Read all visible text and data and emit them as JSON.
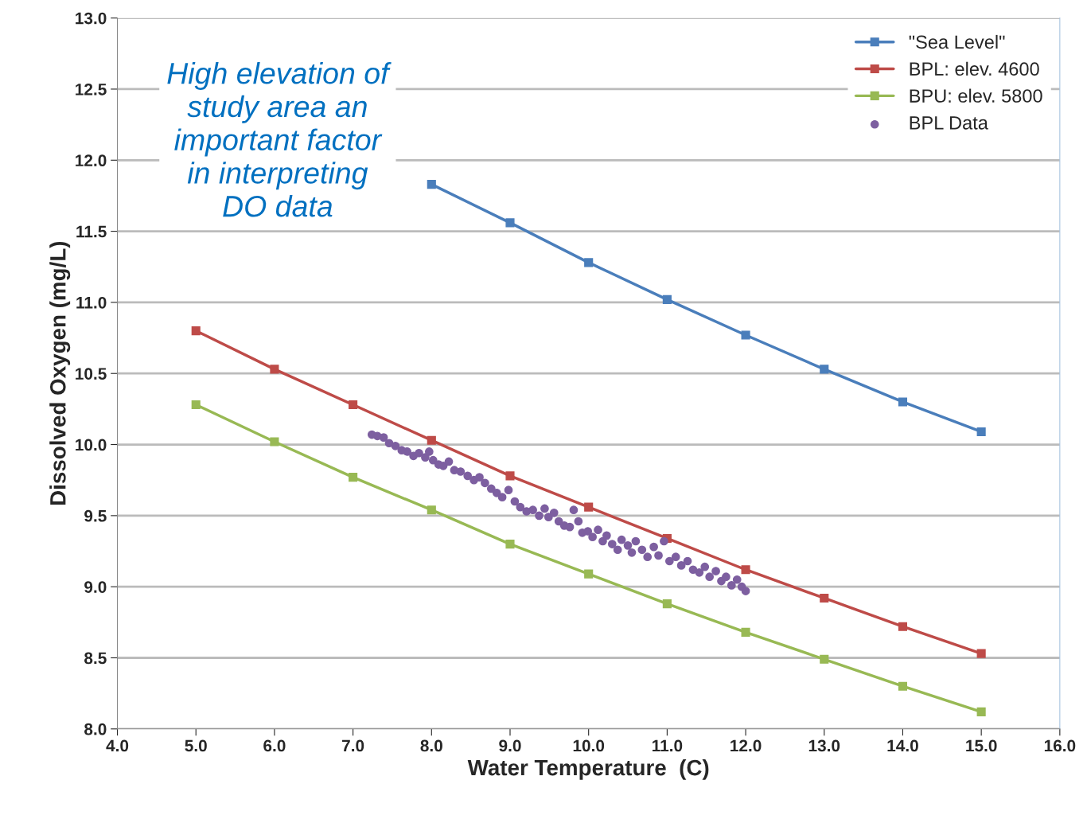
{
  "chart_data": {
    "type": "line",
    "xlabel": "Water Temperature  (C)",
    "ylabel": "Dissolved Oxygen (mg/L)",
    "annotations": [
      "High elevation of\nstudy area an\nimportant factor\nin interpreting\nDO data"
    ],
    "x": [
      5,
      6,
      7,
      8,
      9,
      10,
      11,
      12,
      13,
      14,
      15
    ],
    "series": [
      {
        "name": "\"Sea Level\"",
        "color": "#4a7ebb",
        "marker": "square",
        "values": [
          null,
          null,
          null,
          11.83,
          11.56,
          11.28,
          11.02,
          10.77,
          10.53,
          10.3,
          10.09
        ]
      },
      {
        "name": "BPL: elev. 4600",
        "color": "#be4b48",
        "marker": "square",
        "values": [
          10.8,
          10.53,
          10.28,
          10.03,
          9.78,
          9.56,
          9.34,
          9.12,
          8.92,
          8.72,
          8.53
        ]
      },
      {
        "name": "BPU: elev. 5800",
        "color": "#98b954",
        "marker": "square",
        "values": [
          10.28,
          10.02,
          9.77,
          9.54,
          9.3,
          9.09,
          8.88,
          8.68,
          8.49,
          8.3,
          8.12
        ]
      },
      {
        "name": "BPL Data",
        "type": "scatter",
        "color": "#7d5fa0",
        "marker": "circle",
        "x": [
          7.24,
          7.31,
          7.39,
          7.46,
          7.54,
          7.62,
          7.69,
          7.77,
          7.84,
          7.92,
          7.97,
          8.02,
          8.09,
          8.15,
          8.22,
          8.29,
          8.37,
          8.46,
          8.54,
          8.61,
          8.68,
          8.76,
          8.83,
          8.9,
          8.98,
          9.06,
          9.13,
          9.21,
          9.29,
          9.37,
          9.44,
          9.49,
          9.56,
          9.62,
          9.69,
          9.76,
          9.81,
          9.87,
          9.92,
          9.99,
          10.05,
          10.12,
          10.18,
          10.23,
          10.3,
          10.37,
          10.42,
          10.5,
          10.55,
          10.6,
          10.68,
          10.75,
          10.83,
          10.89,
          10.96,
          11.03,
          11.11,
          11.18,
          11.26,
          11.33,
          11.41,
          11.48,
          11.54,
          11.62,
          11.69,
          11.75,
          11.82,
          11.89,
          11.95,
          12.0
        ],
        "values": [
          10.07,
          10.06,
          10.05,
          10.01,
          9.99,
          9.96,
          9.95,
          9.92,
          9.94,
          9.91,
          9.95,
          9.89,
          9.86,
          9.85,
          9.88,
          9.82,
          9.81,
          9.78,
          9.75,
          9.77,
          9.73,
          9.69,
          9.66,
          9.63,
          9.68,
          9.6,
          9.56,
          9.53,
          9.54,
          9.5,
          9.55,
          9.49,
          9.52,
          9.46,
          9.43,
          9.42,
          9.54,
          9.46,
          9.38,
          9.39,
          9.35,
          9.4,
          9.32,
          9.36,
          9.3,
          9.26,
          9.33,
          9.29,
          9.24,
          9.32,
          9.26,
          9.21,
          9.28,
          9.22,
          9.32,
          9.18,
          9.21,
          9.15,
          9.18,
          9.12,
          9.1,
          9.14,
          9.07,
          9.11,
          9.04,
          9.07,
          9.01,
          9.05,
          9.0,
          8.97
        ]
      }
    ],
    "xlim": [
      4,
      16
    ],
    "ylim": [
      8,
      13
    ],
    "xticks": [
      {
        "value": 4,
        "label": "4.0"
      },
      {
        "value": 5,
        "label": "5.0"
      },
      {
        "value": 6,
        "label": "6.0"
      },
      {
        "value": 7,
        "label": "7.0"
      },
      {
        "value": 8,
        "label": "8.0"
      },
      {
        "value": 9,
        "label": "9.0"
      },
      {
        "value": 10,
        "label": "10.0"
      },
      {
        "value": 11,
        "label": "11.0"
      },
      {
        "value": 12,
        "label": "12.0"
      },
      {
        "value": 13,
        "label": "13.0"
      },
      {
        "value": 14,
        "label": "14.0"
      },
      {
        "value": 15,
        "label": "15.0"
      },
      {
        "value": 16,
        "label": "16.0"
      }
    ],
    "yticks": [
      {
        "value": 8,
        "label": "8.0"
      },
      {
        "value": 8.5,
        "label": "8.5"
      },
      {
        "value": 9,
        "label": "9.0"
      },
      {
        "value": 9.5,
        "label": "9.5"
      },
      {
        "value": 10,
        "label": "10.0"
      },
      {
        "value": 10.5,
        "label": "10.5"
      },
      {
        "value": 11,
        "label": "11.0"
      },
      {
        "value": 11.5,
        "label": "11.5"
      },
      {
        "value": 12,
        "label": "12.0"
      },
      {
        "value": 12.5,
        "label": "12.5"
      },
      {
        "value": 13,
        "label": "13.0"
      }
    ],
    "grid": "y",
    "legend": "top right",
    "line_style": "solid"
  }
}
